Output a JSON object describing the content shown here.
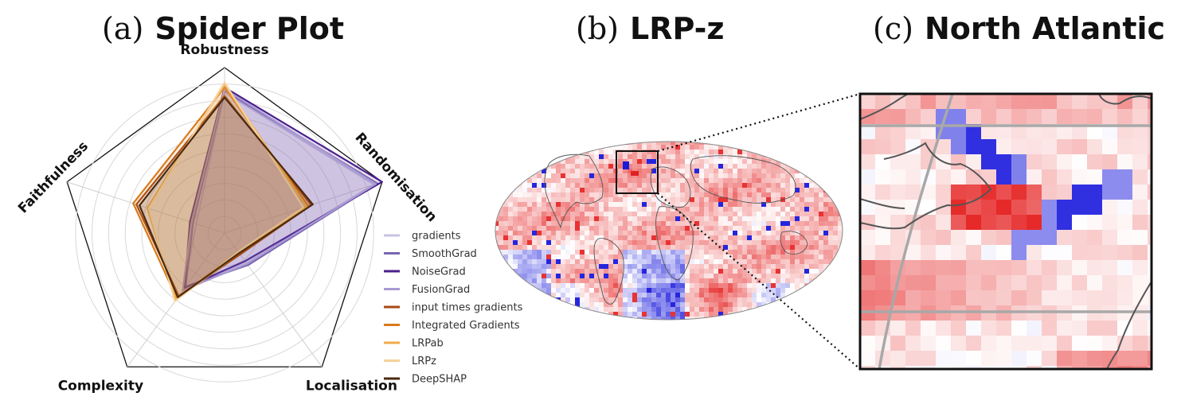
{
  "panels": {
    "a": {
      "letter": "(a)",
      "title": "Spider Plot"
    },
    "b": {
      "letter": "(b)",
      "title": "LRP-z"
    },
    "c": {
      "letter": "(c)",
      "title": "North Atlantic"
    }
  },
  "chart_data": [
    {
      "type": "radar",
      "axes": [
        "Robustness",
        "Randomisation",
        "Localisation",
        "Complexity",
        "Faithfulness"
      ],
      "rmax": 1.0,
      "grid_rings": 9,
      "legend_position": "right",
      "series": [
        {
          "name": "gradients",
          "color": "#c9c3e3",
          "values": [
            0.85,
            0.95,
            0.22,
            0.42,
            0.18
          ]
        },
        {
          "name": "SmoothGrad",
          "color": "#7a66b0",
          "values": [
            0.86,
            0.97,
            0.24,
            0.4,
            0.2
          ]
        },
        {
          "name": "NoiseGrad",
          "color": "#4a1f8c",
          "values": [
            0.88,
            1.0,
            0.21,
            0.41,
            0.22
          ]
        },
        {
          "name": "FusionGrad",
          "color": "#a89ad3",
          "values": [
            0.87,
            0.96,
            0.23,
            0.43,
            0.21
          ]
        },
        {
          "name": "input times gradients",
          "color": "#a84a14",
          "values": [
            0.83,
            0.55,
            0.16,
            0.47,
            0.56
          ]
        },
        {
          "name": "Integrated Gradients",
          "color": "#d97a1a",
          "values": [
            0.88,
            0.53,
            0.14,
            0.49,
            0.58
          ]
        },
        {
          "name": "LRPab",
          "color": "#f0a94a",
          "values": [
            0.9,
            0.52,
            0.15,
            0.5,
            0.49
          ]
        },
        {
          "name": "LRPz",
          "color": "#f6d29a",
          "values": [
            0.91,
            0.5,
            0.14,
            0.51,
            0.48
          ]
        },
        {
          "name": "DeepSHAP",
          "color": "#4a2a10",
          "values": [
            0.82,
            0.56,
            0.15,
            0.48,
            0.54
          ]
        }
      ]
    }
  ]
}
